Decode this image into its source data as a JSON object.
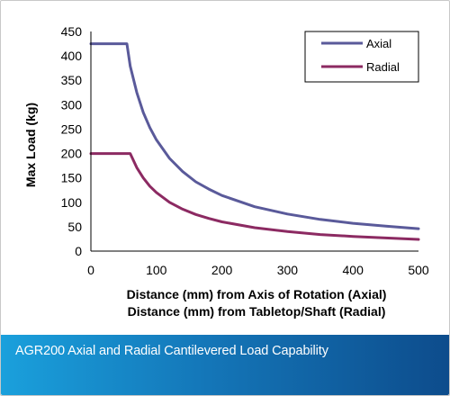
{
  "chart_data": {
    "type": "line",
    "title": "",
    "xlabel_lines": [
      "Distance (mm) from Axis of Rotation (Axial)",
      "Distance (mm) from Tabletop/Shaft (Radial)"
    ],
    "ylabel": "Max Load (kg)",
    "xlim": [
      0,
      500
    ],
    "ylim": [
      0,
      450
    ],
    "x_ticks": [
      0,
      100,
      200,
      300,
      400,
      500
    ],
    "y_ticks": [
      0,
      50,
      100,
      150,
      200,
      250,
      300,
      350,
      400,
      450
    ],
    "grid": false,
    "legend_position": "top-right",
    "series": [
      {
        "name": "Axial",
        "color": "#5a5a9a",
        "x": [
          0,
          55,
          60,
          70,
          80,
          90,
          100,
          120,
          140,
          160,
          180,
          200,
          250,
          300,
          350,
          400,
          450,
          500
        ],
        "y": [
          425,
          425,
          379,
          325,
          284,
          253,
          228,
          190,
          163,
          142,
          127,
          114,
          91,
          76,
          65,
          57,
          51,
          46
        ]
      },
      {
        "name": "Radial",
        "color": "#8c2a62",
        "x": [
          0,
          60,
          70,
          80,
          90,
          100,
          120,
          140,
          160,
          180,
          200,
          250,
          300,
          350,
          400,
          450,
          500
        ],
        "y": [
          200,
          200,
          171,
          150,
          133,
          120,
          100,
          86,
          75,
          67,
          60,
          48,
          40,
          34,
          30,
          27,
          24
        ]
      }
    ]
  },
  "caption": {
    "text": "AGR200 Axial and Radial Cantilevered Load Capability",
    "gradient_colors": [
      "#1aa0dc",
      "#0d4c8c"
    ]
  }
}
